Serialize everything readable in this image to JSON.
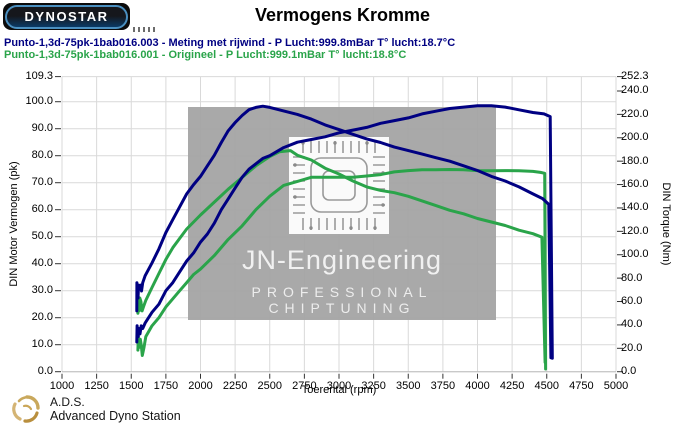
{
  "header": {
    "logo_text": "DYNOSTAR",
    "title": "Vermogens Kromme"
  },
  "legend": {
    "runs": [
      {
        "text": "Punto-1,3d-75pk-1bab016.003 - Meting met rijwind  - P Lucht:999.8mBar T° lucht:18.7°C",
        "color": "#000082"
      },
      {
        "text": "Punto-1,3d-75pk-1bab016.001 - Origineel  - P Lucht:999.1mBar T° lucht:18.8°C",
        "color": "#2aa44a"
      }
    ]
  },
  "watermark": {
    "line1": "JN-Engineering",
    "line2": "PROFESSIONAL CHIPTUNING"
  },
  "footer": {
    "line1": "A.D.S.",
    "line2": "Advanced Dyno Station"
  },
  "chart_data": {
    "type": "line",
    "title": "Vermogens Kromme",
    "xlabel": "Toerental (rpm)",
    "y_left_label": "DIN Motor Vermogen (pk)",
    "y_right_label": "DIN Torque (Nm)",
    "x_range": [
      1000,
      5000
    ],
    "y_left_range": [
      0,
      109.3
    ],
    "y_right_range": [
      0,
      252.3
    ],
    "grid": true,
    "grid_color": "#d9d9d9",
    "tick_color": "#333333",
    "x_ticks": [
      [
        1000,
        "1000"
      ],
      [
        1250,
        "1250"
      ],
      [
        1500,
        "1500"
      ],
      [
        1750,
        "1750"
      ],
      [
        2000,
        "2000"
      ],
      [
        2250,
        "2250"
      ],
      [
        2500,
        "2500"
      ],
      [
        2750,
        "2750"
      ],
      [
        3000,
        "3000"
      ],
      [
        3250,
        "3250"
      ],
      [
        3500,
        "3500"
      ],
      [
        3750,
        "3750"
      ],
      [
        4000,
        "4000"
      ],
      [
        4250,
        "4250"
      ],
      [
        4500,
        "4500"
      ],
      [
        4750,
        "4750"
      ],
      [
        5000,
        "5000"
      ]
    ],
    "y_left_ticks": [
      [
        109.3,
        "109.3"
      ],
      [
        100,
        "100.0"
      ],
      [
        90,
        "90.0"
      ],
      [
        80,
        "80.0"
      ],
      [
        70,
        "70.0"
      ],
      [
        60,
        "60.0"
      ],
      [
        50,
        "50.0"
      ],
      [
        40,
        "40.0"
      ],
      [
        30,
        "30.0"
      ],
      [
        20,
        "20.0"
      ],
      [
        10,
        "10.0"
      ],
      [
        0,
        "0.0"
      ]
    ],
    "y_right_ticks": [
      [
        252.3,
        "252.3"
      ],
      [
        240,
        "240.0"
      ],
      [
        220,
        "220.0"
      ],
      [
        200,
        "200.0"
      ],
      [
        180,
        "180.0"
      ],
      [
        160,
        "160.0"
      ],
      [
        140,
        "140.0"
      ],
      [
        120,
        "120.0"
      ],
      [
        100,
        "100.0"
      ],
      [
        80,
        "80.0"
      ],
      [
        60,
        "60.0"
      ],
      [
        40,
        "40.0"
      ],
      [
        20,
        "20.0"
      ],
      [
        0,
        "0.0"
      ]
    ],
    "series": [
      {
        "name": "Origineel - koppel",
        "axis": "right",
        "unit": "Nm",
        "color": "#2aa44a",
        "width": 3,
        "points": [
          [
            1548,
            50
          ],
          [
            1550,
            64
          ],
          [
            1557,
            52
          ],
          [
            1562,
            63
          ],
          [
            1570,
            60
          ],
          [
            1578,
            52
          ],
          [
            1590,
            56
          ],
          [
            1605,
            61
          ],
          [
            1650,
            72
          ],
          [
            1700,
            84
          ],
          [
            1750,
            96
          ],
          [
            1800,
            106
          ],
          [
            1850,
            114
          ],
          [
            1900,
            122
          ],
          [
            1950,
            128
          ],
          [
            2000,
            134
          ],
          [
            2100,
            145
          ],
          [
            2200,
            156
          ],
          [
            2300,
            166
          ],
          [
            2400,
            176
          ],
          [
            2500,
            184
          ],
          [
            2570,
            188
          ],
          [
            2650,
            189
          ],
          [
            2700,
            185
          ],
          [
            2800,
            181
          ],
          [
            2900,
            174
          ],
          [
            3000,
            169
          ],
          [
            3100,
            163
          ],
          [
            3200,
            158
          ],
          [
            3300,
            155
          ],
          [
            3400,
            153
          ],
          [
            3500,
            150
          ],
          [
            3600,
            146
          ],
          [
            3700,
            142
          ],
          [
            3800,
            138
          ],
          [
            3900,
            135
          ],
          [
            4000,
            131
          ],
          [
            4100,
            128
          ],
          [
            4200,
            125
          ],
          [
            4300,
            121
          ],
          [
            4400,
            118
          ],
          [
            4465,
            115
          ],
          [
            4488,
            8
          ]
        ]
      },
      {
        "name": "Origineel - vermogen",
        "axis": "left",
        "unit": "pk",
        "color": "#2aa44a",
        "width": 3,
        "points": [
          [
            1548,
            8
          ],
          [
            1551,
            13
          ],
          [
            1558,
            9
          ],
          [
            1565,
            12
          ],
          [
            1572,
            10
          ],
          [
            1580,
            6
          ],
          [
            1592,
            9
          ],
          [
            1605,
            13
          ],
          [
            1650,
            17
          ],
          [
            1700,
            20
          ],
          [
            1750,
            24
          ],
          [
            1800,
            27
          ],
          [
            1850,
            30
          ],
          [
            1900,
            33
          ],
          [
            1950,
            36
          ],
          [
            2000,
            38
          ],
          [
            2100,
            43
          ],
          [
            2200,
            49
          ],
          [
            2300,
            54
          ],
          [
            2400,
            60
          ],
          [
            2500,
            65
          ],
          [
            2600,
            69
          ],
          [
            2700,
            70.5
          ],
          [
            2800,
            72
          ],
          [
            2900,
            72
          ],
          [
            3000,
            72
          ],
          [
            3100,
            72
          ],
          [
            3200,
            72.5
          ],
          [
            3300,
            73
          ],
          [
            3400,
            74
          ],
          [
            3500,
            74.5
          ],
          [
            3600,
            74.8
          ],
          [
            3700,
            74.8
          ],
          [
            3800,
            74.9
          ],
          [
            3900,
            74.8
          ],
          [
            4000,
            74.5
          ],
          [
            4100,
            74.4
          ],
          [
            4200,
            74.5
          ],
          [
            4300,
            74.4
          ],
          [
            4400,
            74.2
          ],
          [
            4455,
            73.8
          ],
          [
            4485,
            73.5
          ],
          [
            4492,
            1
          ]
        ]
      },
      {
        "name": "Meting met rijwind - koppel",
        "axis": "right",
        "unit": "Nm",
        "color": "#000082",
        "width": 3,
        "points": [
          [
            1540,
            52
          ],
          [
            1541,
            76
          ],
          [
            1549,
            63
          ],
          [
            1553,
            74
          ],
          [
            1560,
            71
          ],
          [
            1567,
            74
          ],
          [
            1574,
            69
          ],
          [
            1583,
            76
          ],
          [
            1600,
            82
          ],
          [
            1650,
            93
          ],
          [
            1700,
            105
          ],
          [
            1750,
            119
          ],
          [
            1800,
            130
          ],
          [
            1850,
            141
          ],
          [
            1900,
            152
          ],
          [
            1950,
            160
          ],
          [
            2000,
            167
          ],
          [
            2050,
            176
          ],
          [
            2100,
            185
          ],
          [
            2150,
            196
          ],
          [
            2200,
            206
          ],
          [
            2250,
            213
          ],
          [
            2300,
            219
          ],
          [
            2350,
            224
          ],
          [
            2400,
            226
          ],
          [
            2450,
            227
          ],
          [
            2500,
            226
          ],
          [
            2600,
            223
          ],
          [
            2700,
            220
          ],
          [
            2800,
            216
          ],
          [
            2900,
            211
          ],
          [
            3000,
            207
          ],
          [
            3100,
            203
          ],
          [
            3200,
            199
          ],
          [
            3300,
            196
          ],
          [
            3400,
            192
          ],
          [
            3500,
            189
          ],
          [
            3600,
            186
          ],
          [
            3700,
            183
          ],
          [
            3800,
            180
          ],
          [
            3900,
            176
          ],
          [
            4000,
            172
          ],
          [
            4100,
            167
          ],
          [
            4200,
            163
          ],
          [
            4300,
            158
          ],
          [
            4400,
            152
          ],
          [
            4470,
            148
          ],
          [
            4515,
            143
          ],
          [
            4530,
            12
          ]
        ]
      },
      {
        "name": "Meting met rijwind - vermogen",
        "axis": "left",
        "unit": "pk",
        "color": "#000082",
        "width": 3,
        "points": [
          [
            1540,
            11
          ],
          [
            1542,
            17
          ],
          [
            1550,
            13
          ],
          [
            1556,
            16
          ],
          [
            1563,
            14
          ],
          [
            1572,
            17
          ],
          [
            1583,
            16
          ],
          [
            1600,
            18
          ],
          [
            1650,
            22
          ],
          [
            1700,
            25
          ],
          [
            1750,
            30
          ],
          [
            1800,
            33
          ],
          [
            1850,
            37
          ],
          [
            1900,
            41
          ],
          [
            1950,
            44
          ],
          [
            2000,
            48
          ],
          [
            2050,
            51
          ],
          [
            2100,
            55
          ],
          [
            2150,
            60
          ],
          [
            2200,
            64
          ],
          [
            2250,
            68
          ],
          [
            2300,
            72
          ],
          [
            2350,
            75
          ],
          [
            2400,
            77
          ],
          [
            2450,
            79
          ],
          [
            2500,
            80
          ],
          [
            2600,
            83
          ],
          [
            2700,
            85
          ],
          [
            2800,
            86
          ],
          [
            2900,
            87
          ],
          [
            3000,
            88.5
          ],
          [
            3100,
            89.5
          ],
          [
            3200,
            90.5
          ],
          [
            3300,
            92
          ],
          [
            3400,
            93
          ],
          [
            3500,
            94
          ],
          [
            3600,
            95.5
          ],
          [
            3700,
            96.5
          ],
          [
            3800,
            97.5
          ],
          [
            3900,
            98
          ],
          [
            4000,
            98.5
          ],
          [
            4100,
            98.5
          ],
          [
            4200,
            98
          ],
          [
            4300,
            97
          ],
          [
            4400,
            96
          ],
          [
            4480,
            95.5
          ],
          [
            4525,
            94.5
          ],
          [
            4540,
            5
          ]
        ]
      }
    ]
  }
}
